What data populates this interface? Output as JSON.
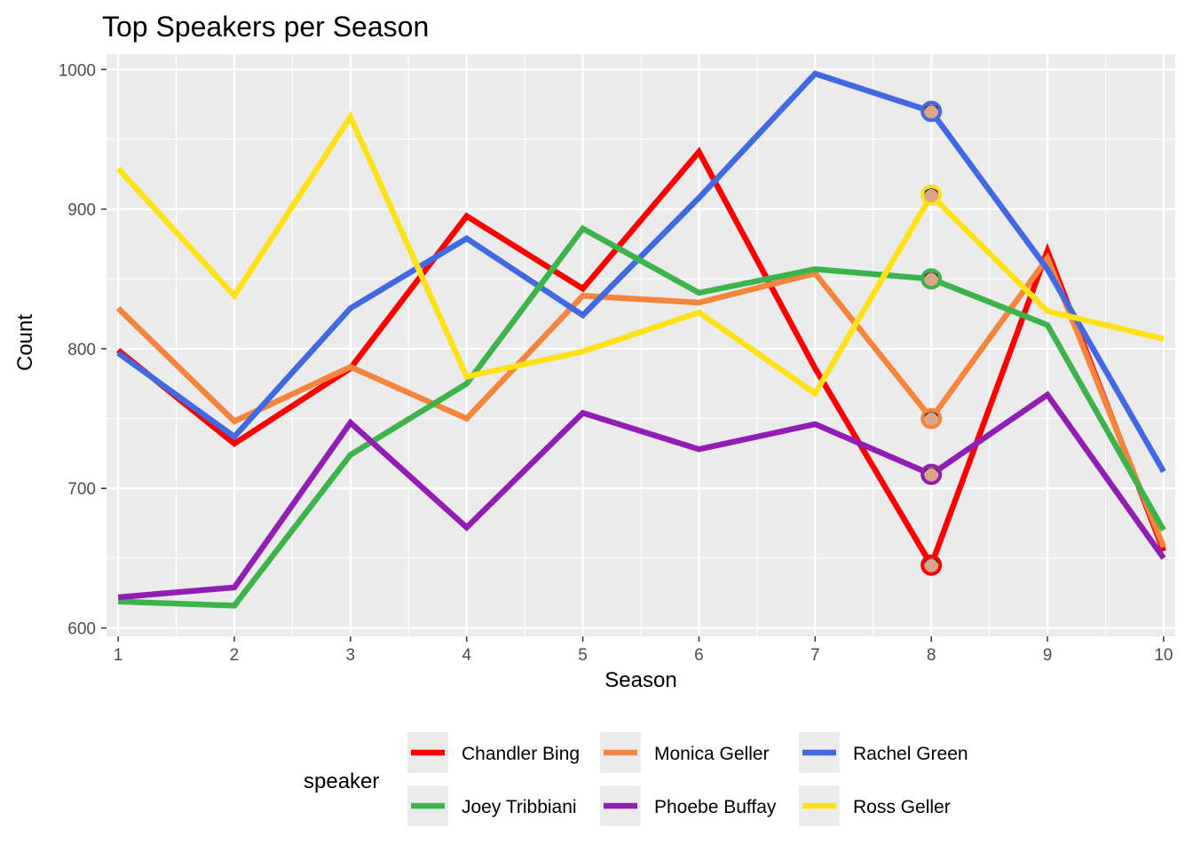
{
  "chart_data": {
    "type": "line",
    "title": "Top Speakers per Season",
    "xlabel": "Season",
    "ylabel": "Count",
    "x": [
      1,
      2,
      3,
      4,
      5,
      6,
      7,
      8,
      9,
      10
    ],
    "xlim": [
      0.9,
      10.1
    ],
    "ylim": [
      594,
      1011
    ],
    "yticks": [
      600,
      700,
      800,
      900,
      1000
    ],
    "grid": true,
    "legend": {
      "title": "speaker",
      "position": "bottom"
    },
    "marker_season": 8,
    "series": [
      {
        "name": "Chandler Bing",
        "color": "#ff0000",
        "values": [
          799,
          732,
          786,
          895,
          843,
          941,
          786,
          645,
          870,
          655
        ]
      },
      {
        "name": "Monica Geller",
        "color": "#f5843c",
        "values": [
          829,
          748,
          787,
          750,
          838,
          833,
          854,
          750,
          865,
          658
        ]
      },
      {
        "name": "Rachel Green",
        "color": "#4169e1",
        "values": [
          797,
          737,
          829,
          879,
          824,
          908,
          997,
          970,
          857,
          712
        ]
      },
      {
        "name": "Joey Tribbiani",
        "color": "#3cb44b",
        "values": [
          619,
          616,
          724,
          775,
          886,
          840,
          857,
          850,
          817,
          670
        ]
      },
      {
        "name": "Phoebe Buffay",
        "color": "#911eb4",
        "values": [
          622,
          629,
          747,
          672,
          754,
          728,
          746,
          710,
          767,
          650
        ]
      },
      {
        "name": "Ross Geller",
        "color": "#ffe119",
        "values": [
          929,
          838,
          966,
          780,
          798,
          826,
          768,
          910,
          827,
          807
        ]
      }
    ]
  }
}
